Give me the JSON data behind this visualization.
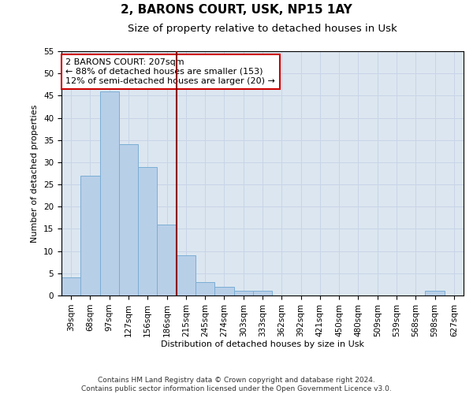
{
  "title": "2, BARONS COURT, USK, NP15 1AY",
  "subtitle": "Size of property relative to detached houses in Usk",
  "xlabel": "Distribution of detached houses by size in Usk",
  "ylabel": "Number of detached properties",
  "categories": [
    "39sqm",
    "68sqm",
    "97sqm",
    "127sqm",
    "156sqm",
    "186sqm",
    "215sqm",
    "245sqm",
    "274sqm",
    "303sqm",
    "333sqm",
    "362sqm",
    "392sqm",
    "421sqm",
    "450sqm",
    "480sqm",
    "509sqm",
    "539sqm",
    "568sqm",
    "598sqm",
    "627sqm"
  ],
  "values": [
    4,
    27,
    46,
    34,
    29,
    16,
    9,
    3,
    2,
    1,
    1,
    0,
    0,
    0,
    0,
    0,
    0,
    0,
    0,
    1,
    0
  ],
  "bar_color": "#b8cfe8",
  "bar_edge_color": "#7aadd4",
  "vline_x_index": 5.5,
  "vline_color": "#8b0000",
  "annotation_text": "2 BARONS COURT: 207sqm\n← 88% of detached houses are smaller (153)\n12% of semi-detached houses are larger (20) →",
  "annotation_box_color": "#ffffff",
  "annotation_box_edge_color": "#cc0000",
  "ylim": [
    0,
    55
  ],
  "yticks": [
    0,
    5,
    10,
    15,
    20,
    25,
    30,
    35,
    40,
    45,
    50,
    55
  ],
  "grid_color": "#c8d4e8",
  "background_color": "#dce6f0",
  "footer_line1": "Contains HM Land Registry data © Crown copyright and database right 2024.",
  "footer_line2": "Contains public sector information licensed under the Open Government Licence v3.0.",
  "title_fontsize": 11,
  "subtitle_fontsize": 9.5,
  "axis_label_fontsize": 8,
  "tick_fontsize": 7.5,
  "annotation_fontsize": 8,
  "footer_fontsize": 6.5
}
